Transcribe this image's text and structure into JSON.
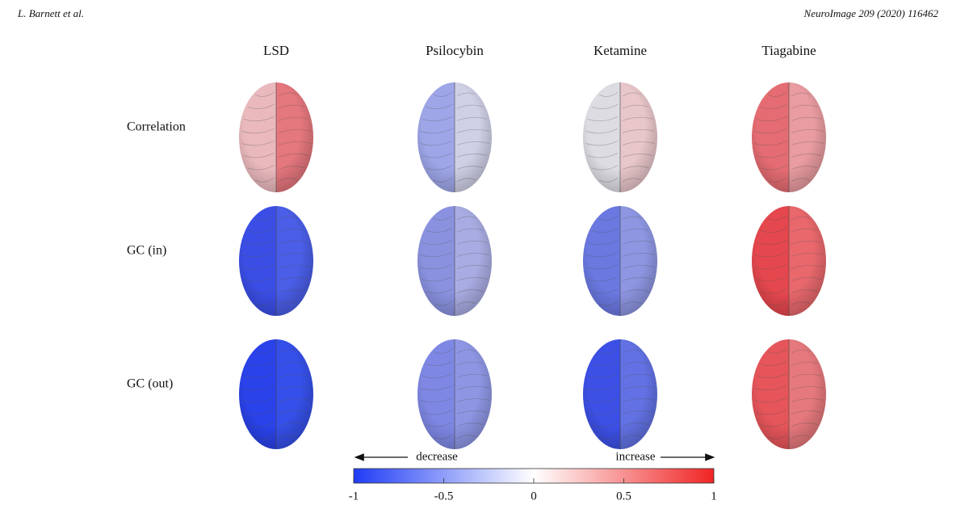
{
  "header": {
    "left": "L. Barnett et al.",
    "right": "NeuroImage 209 (2020) 116462"
  },
  "columns": [
    "LSD",
    "Psilocybin",
    "Ketamine",
    "Tiagabine"
  ],
  "rows": [
    {
      "label": "Correlation",
      "colors": [
        [
          "#e9b9bd",
          "#e5777e"
        ],
        [
          "#9ea6e8",
          "#cfd0e6"
        ],
        [
          "#dcdce2",
          "#e8c6ca"
        ],
        [
          "#e46c72",
          "#e99ca1"
        ]
      ]
    },
    {
      "label": "GC (in)",
      "colors": [
        [
          "#3a4ee6",
          "#4a5ee8"
        ],
        [
          "#8a92e0",
          "#a9ace2"
        ],
        [
          "#6a78e0",
          "#8e96e2"
        ],
        [
          "#e4474d",
          "#e8686c"
        ]
      ]
    },
    {
      "label": "GC (out)",
      "colors": [
        [
          "#2a42ea",
          "#3550ea"
        ],
        [
          "#7e88e4",
          "#8e96e4"
        ],
        [
          "#3c50e6",
          "#6272e4"
        ],
        [
          "#e5555a",
          "#e6797d"
        ]
      ]
    }
  ],
  "colorbar": {
    "left_label": "decrease",
    "right_label": "increase",
    "range": [
      -1,
      1
    ],
    "ticks": [
      -1,
      -0.5,
      0,
      0.5,
      1
    ],
    "colors": [
      "#1f3cf5",
      "#ffffff",
      "#f02424"
    ]
  }
}
